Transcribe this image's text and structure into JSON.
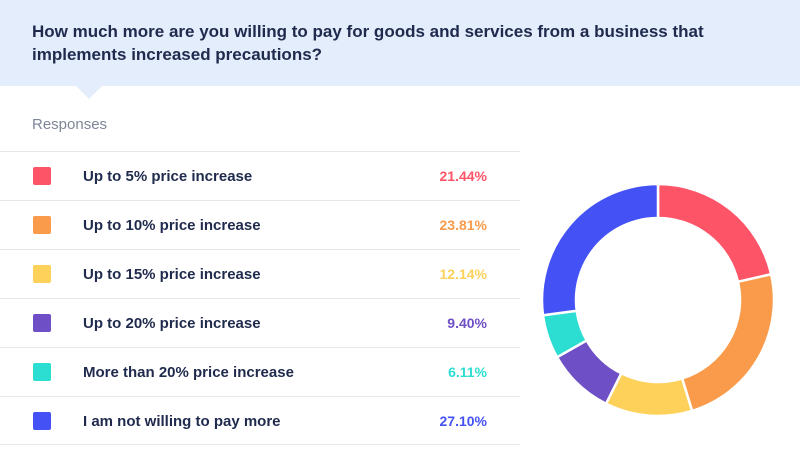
{
  "header": {
    "title": "How much more are you willing to pay for goods and services from a business that implements increased precautions?"
  },
  "responses_label": "Responses",
  "chart_data": {
    "type": "pie",
    "title": "How much more are you willing to pay for goods and services from a business that implements increased precautions?",
    "unit": "%",
    "legend_placement": "left",
    "slices": [
      {
        "label": "Up to 5% price increase",
        "value": 21.44,
        "display": "21.44%",
        "color": "#fd5567"
      },
      {
        "label": "Up to 10% price increase",
        "value": 23.81,
        "display": "23.81%",
        "color": "#f99b4a"
      },
      {
        "label": "Up to 15% price increase",
        "value": 12.14,
        "display": "12.14%",
        "color": "#fed15b"
      },
      {
        "label": "Up to 20% price increase",
        "value": 9.4,
        "display": "9.40%",
        "color": "#6e4fc6"
      },
      {
        "label": "More than 20% price increase",
        "value": 6.11,
        "display": "6.11%",
        "color": "#2cddd1"
      },
      {
        "label": "I am not willing to pay more",
        "value": 27.1,
        "display": "27.10%",
        "color": "#4452f5"
      }
    ]
  }
}
